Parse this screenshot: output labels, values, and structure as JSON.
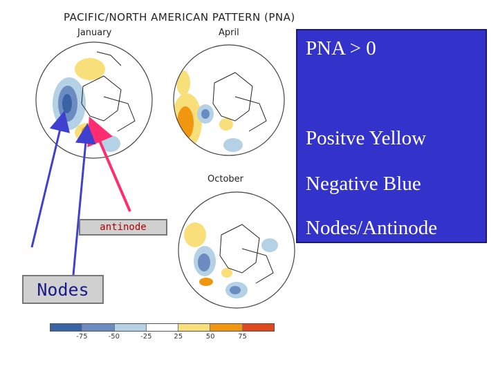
{
  "figure": {
    "title": "PACIFIC/NORTH AMERICAN PATTERN (PNA)",
    "panels": [
      {
        "month": "January"
      },
      {
        "month": "April"
      },
      {
        "month": "October"
      }
    ],
    "colorbar": {
      "colors": [
        "#3a63a6",
        "#6c8bc0",
        "#b4d1e6",
        "#ffffff",
        "#f9df7a",
        "#f0970f",
        "#e0461b"
      ],
      "ticks": [
        "-75",
        "-50",
        "-25",
        "25",
        "50",
        "75"
      ]
    },
    "colors": {
      "positive": "#f5c842",
      "negative": "#4d79bf"
    }
  },
  "callout": {
    "lines": [
      "PNA > 0",
      "Positve Yellow",
      "Negative Blue",
      "Nodes/Antinode"
    ],
    "background": "#3333cc"
  },
  "labels": {
    "antinode": "antinode",
    "nodes": "Nodes"
  },
  "arrows": {
    "antinode_color": "#ff2d6f",
    "nodes_color": "#4040d0"
  }
}
